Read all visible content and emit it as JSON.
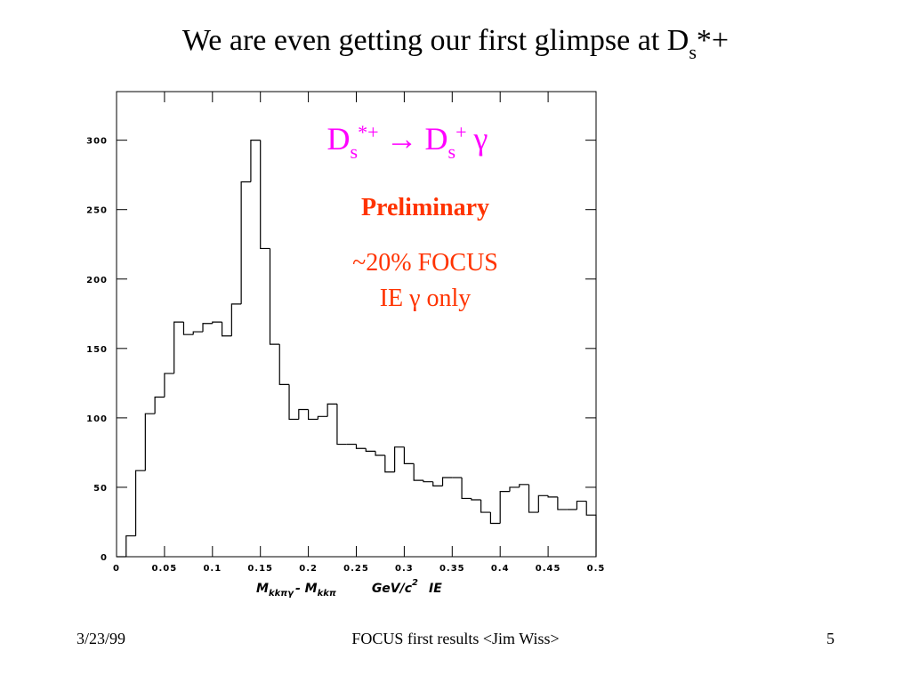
{
  "chart_data": {
    "type": "histogram",
    "title": [
      "We are even getting our first glimpse at D",
      "s",
      "*+"
    ],
    "decay": [
      "D",
      "s",
      "*+",
      "→",
      "D",
      "s",
      "+",
      "γ"
    ],
    "annotations": [
      "Preliminary",
      "~20% FOCUS",
      "IE γ only"
    ],
    "x_label": [
      "M",
      "kkπγ",
      "- M",
      "kkπ",
      "GeV/c",
      "2",
      "IE"
    ],
    "bins": [
      0,
      0.01,
      0.02,
      0.03,
      0.04,
      0.05,
      0.06,
      0.07,
      0.08,
      0.09,
      0.1,
      0.11,
      0.12,
      0.13,
      0.14,
      0.15,
      0.16,
      0.17,
      0.18,
      0.19,
      0.2,
      0.21,
      0.22,
      0.23,
      0.24,
      0.25,
      0.26,
      0.27,
      0.28,
      0.29,
      0.3,
      0.31,
      0.32,
      0.33,
      0.34,
      0.35,
      0.36,
      0.37,
      0.38,
      0.39,
      0.4,
      0.41,
      0.42,
      0.43,
      0.44,
      0.45,
      0.46,
      0.47,
      0.48,
      0.49,
      0.5
    ],
    "values": [
      0,
      15,
      62,
      103,
      115,
      132,
      169,
      160,
      162,
      168,
      169,
      159,
      182,
      270,
      300,
      222,
      153,
      124,
      99,
      106,
      99,
      101,
      110,
      81,
      81,
      78,
      76,
      73,
      61,
      79,
      67,
      55,
      54,
      51,
      57,
      57,
      42,
      41,
      32,
      24,
      47,
      50,
      52,
      32,
      44,
      43,
      34,
      34,
      40,
      30
    ],
    "xlim": [
      0,
      0.5
    ],
    "ylim": [
      0,
      335
    ],
    "xticks": [
      0,
      0.05,
      0.1,
      0.15,
      0.2,
      0.25,
      0.3,
      0.35,
      0.4,
      0.45,
      0.5
    ],
    "yticks": [
      0,
      50,
      100,
      150,
      200,
      250,
      300
    ],
    "color": "#000000"
  },
  "footer": {
    "date": "3/23/99",
    "center": "FOCUS first results <Jim Wiss>",
    "page": "5"
  }
}
